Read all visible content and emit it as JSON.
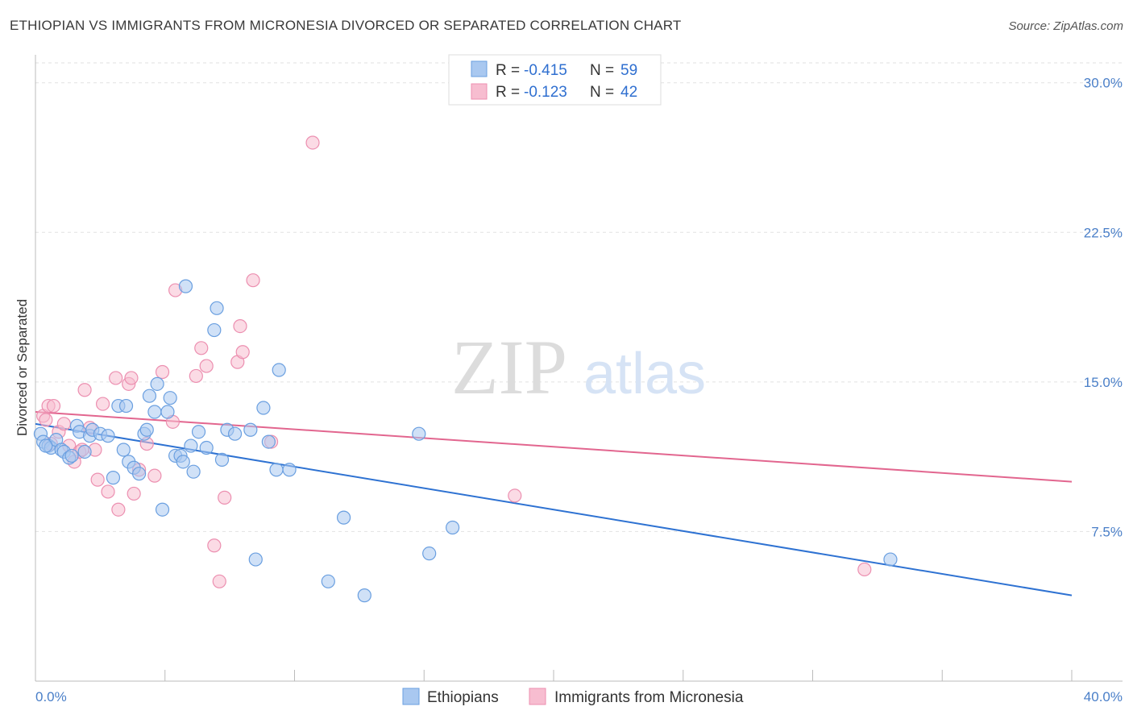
{
  "header": {
    "title": "ETHIOPIAN VS IMMIGRANTS FROM MICRONESIA DIVORCED OR SEPARATED CORRELATION CHART",
    "source": "Source: ZipAtlas.com"
  },
  "watermark": {
    "zip": "ZIP",
    "atlas": "atlas"
  },
  "legend": {
    "r_label": "R =",
    "n_label": "N =",
    "rows": [
      {
        "r": "-0.415",
        "n": "59",
        "color": "#a9c8f0",
        "stroke": "#6a9fe0"
      },
      {
        "r": "-0.123",
        "n": "42",
        "color": "#f7bdd0",
        "stroke": "#ec8fb0"
      }
    ]
  },
  "bottom_legend": [
    {
      "label": "Ethiopians",
      "color": "#a9c8f0",
      "stroke": "#6a9fe0"
    },
    {
      "label": "Immigrants from Micronesia",
      "color": "#f7bdd0",
      "stroke": "#ec8fb0"
    }
  ],
  "chart_data": {
    "type": "scatter",
    "title": "ETHIOPIAN VS IMMIGRANTS FROM MICRONESIA DIVORCED OR SEPARATED CORRELATION CHART",
    "xlabel": "",
    "ylabel": "Divorced or Separated",
    "xlim": [
      0,
      40
    ],
    "ylim": [
      0,
      31
    ],
    "x_tick_labels": [
      "0.0%",
      "40.0%"
    ],
    "y_ticks": [
      7.5,
      15.0,
      22.5,
      30.0
    ],
    "y_tick_labels": [
      "7.5%",
      "15.0%",
      "22.5%",
      "30.0%"
    ],
    "grid": true,
    "legend_position": "top-center",
    "series": [
      {
        "name": "Ethiopians",
        "color": "#6a9fe0",
        "fill": "#a9c8f0",
        "line_color": "#2e72d2",
        "trend": {
          "x": [
            0,
            40
          ],
          "y": [
            12.9,
            4.3
          ]
        },
        "points": [
          [
            0.2,
            12.4
          ],
          [
            0.3,
            12.0
          ],
          [
            0.5,
            11.8
          ],
          [
            0.6,
            11.7
          ],
          [
            0.8,
            12.1
          ],
          [
            1.0,
            11.6
          ],
          [
            1.1,
            11.5
          ],
          [
            1.3,
            11.2
          ],
          [
            1.6,
            12.8
          ],
          [
            1.7,
            12.5
          ],
          [
            1.9,
            11.5
          ],
          [
            2.1,
            12.3
          ],
          [
            2.2,
            12.6
          ],
          [
            2.5,
            12.4
          ],
          [
            2.8,
            12.3
          ],
          [
            3.0,
            10.2
          ],
          [
            3.2,
            13.8
          ],
          [
            3.4,
            11.6
          ],
          [
            3.5,
            13.8
          ],
          [
            3.6,
            11.0
          ],
          [
            3.8,
            10.7
          ],
          [
            4.0,
            10.4
          ],
          [
            4.2,
            12.4
          ],
          [
            4.3,
            12.6
          ],
          [
            4.4,
            14.3
          ],
          [
            4.6,
            13.5
          ],
          [
            4.7,
            14.9
          ],
          [
            4.9,
            8.6
          ],
          [
            5.1,
            13.5
          ],
          [
            5.2,
            14.2
          ],
          [
            5.4,
            11.3
          ],
          [
            5.6,
            11.3
          ],
          [
            5.7,
            11.0
          ],
          [
            5.8,
            19.8
          ],
          [
            6.0,
            11.8
          ],
          [
            6.1,
            10.5
          ],
          [
            6.3,
            12.5
          ],
          [
            6.6,
            11.7
          ],
          [
            6.9,
            17.6
          ],
          [
            7.0,
            18.7
          ],
          [
            7.2,
            11.1
          ],
          [
            7.4,
            12.6
          ],
          [
            7.7,
            12.4
          ],
          [
            8.3,
            12.6
          ],
          [
            8.5,
            6.1
          ],
          [
            8.8,
            13.7
          ],
          [
            9.0,
            12.0
          ],
          [
            9.3,
            10.6
          ],
          [
            9.4,
            15.6
          ],
          [
            9.8,
            10.6
          ],
          [
            11.3,
            5.0
          ],
          [
            11.9,
            8.2
          ],
          [
            12.7,
            4.3
          ],
          [
            14.8,
            12.4
          ],
          [
            15.2,
            6.4
          ],
          [
            16.1,
            7.7
          ],
          [
            33.0,
            6.1
          ],
          [
            0.4,
            11.8
          ],
          [
            1.4,
            11.3
          ]
        ]
      },
      {
        "name": "Immigrants from Micronesia",
        "color": "#ec8fb0",
        "fill": "#f7bdd0",
        "line_color": "#e2668f",
        "trend": {
          "x": [
            0,
            40
          ],
          "y": [
            13.5,
            10.0
          ]
        },
        "points": [
          [
            0.3,
            13.3
          ],
          [
            0.5,
            13.8
          ],
          [
            0.7,
            13.8
          ],
          [
            0.9,
            12.5
          ],
          [
            1.1,
            12.9
          ],
          [
            1.3,
            11.8
          ],
          [
            1.5,
            11.0
          ],
          [
            1.7,
            11.5
          ],
          [
            1.9,
            14.6
          ],
          [
            2.1,
            12.7
          ],
          [
            2.3,
            11.6
          ],
          [
            2.4,
            10.1
          ],
          [
            2.6,
            13.9
          ],
          [
            2.8,
            9.5
          ],
          [
            3.1,
            15.2
          ],
          [
            3.2,
            8.6
          ],
          [
            3.6,
            14.9
          ],
          [
            3.7,
            15.2
          ],
          [
            3.8,
            9.4
          ],
          [
            4.0,
            10.6
          ],
          [
            4.3,
            11.9
          ],
          [
            4.9,
            15.5
          ],
          [
            5.3,
            13.0
          ],
          [
            5.4,
            19.6
          ],
          [
            6.2,
            15.3
          ],
          [
            6.4,
            16.7
          ],
          [
            6.6,
            15.8
          ],
          [
            6.9,
            6.8
          ],
          [
            7.1,
            5.0
          ],
          [
            7.3,
            9.2
          ],
          [
            7.8,
            16.0
          ],
          [
            7.9,
            17.8
          ],
          [
            8.0,
            16.5
          ],
          [
            8.4,
            20.1
          ],
          [
            9.1,
            12.0
          ],
          [
            10.7,
            27.0
          ],
          [
            18.5,
            9.3
          ],
          [
            32.0,
            5.6
          ],
          [
            0.6,
            11.9
          ],
          [
            1.8,
            11.6
          ],
          [
            4.6,
            10.3
          ],
          [
            0.4,
            13.1
          ]
        ]
      }
    ]
  }
}
